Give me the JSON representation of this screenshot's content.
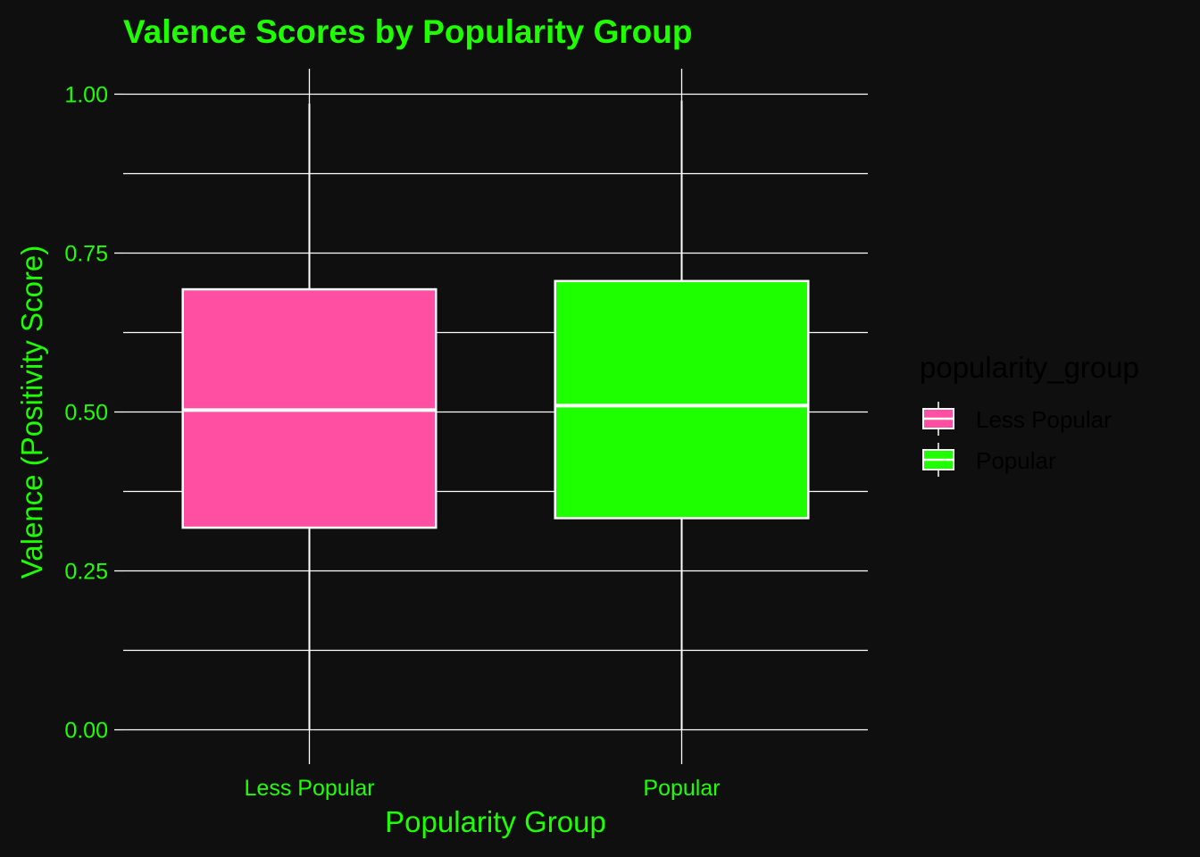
{
  "chart_data": {
    "type": "boxplot",
    "title": "Valence Scores by Popularity Group",
    "xlabel": "Popularity Group",
    "ylabel": "Valence (Positivity Score)",
    "categories": [
      "Less Popular",
      "Popular"
    ],
    "boxes": [
      {
        "category": "Less Popular",
        "min": 0.0,
        "q1": 0.318,
        "median": 0.503,
        "q3": 0.693,
        "max": 0.985,
        "fill": "#ff4fa3"
      },
      {
        "category": "Popular",
        "min": 0.0,
        "q1": 0.333,
        "median": 0.51,
        "q3": 0.706,
        "max": 0.99,
        "fill": "#1eff00"
      }
    ],
    "ylim": [
      -0.04,
      1.04
    ],
    "yticks": [
      0.0,
      0.25,
      0.5,
      0.75,
      1.0
    ],
    "ytick_labels": [
      "0.00",
      "0.25",
      "0.50",
      "0.75",
      "1.00"
    ],
    "grid": true,
    "legend": {
      "title": "popularity_group",
      "position": "right",
      "entries": [
        {
          "label": "Less Popular",
          "color": "#ff4fa3"
        },
        {
          "label": "Popular",
          "color": "#1eff00"
        }
      ]
    },
    "colors": {
      "background": "#0f0f0f",
      "text_accent": "#1eff00",
      "lines": "#ffffff",
      "legend_title": "#000000",
      "legend_text": "#000000"
    }
  }
}
